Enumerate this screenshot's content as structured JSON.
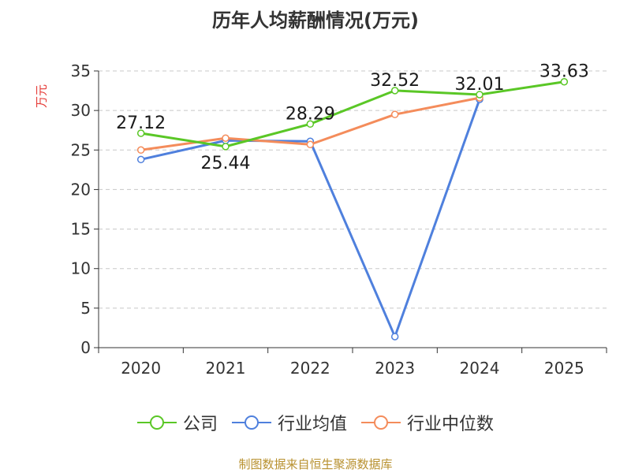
{
  "chart_data": {
    "type": "line",
    "title": "历年人均薪酬情况(万元)",
    "ylabel": "万元",
    "xlabel": "",
    "categories": [
      "2020",
      "2021",
      "2022",
      "2023",
      "2024",
      "2025"
    ],
    "ylim": [
      0,
      35
    ],
    "yticks": [
      0,
      5,
      10,
      15,
      20,
      25,
      30,
      35
    ],
    "grid": true,
    "legend_position": "bottom",
    "series": [
      {
        "name": "公司",
        "color": "#5ac726",
        "values": [
          27.12,
          25.44,
          28.29,
          32.52,
          32.01,
          33.63
        ],
        "labels": [
          "27.12",
          "25.44",
          "28.29",
          "32.52",
          "32.01",
          "33.63"
        ]
      },
      {
        "name": "行业均值",
        "color": "#4f80dd",
        "values": [
          23.8,
          26.2,
          26.1,
          1.4,
          31.4,
          null
        ]
      },
      {
        "name": "行业中位数",
        "color": "#f48c5b",
        "values": [
          25.0,
          26.5,
          25.7,
          29.5,
          31.6,
          null
        ]
      }
    ]
  },
  "source": "制图数据来自恒生聚源数据库"
}
